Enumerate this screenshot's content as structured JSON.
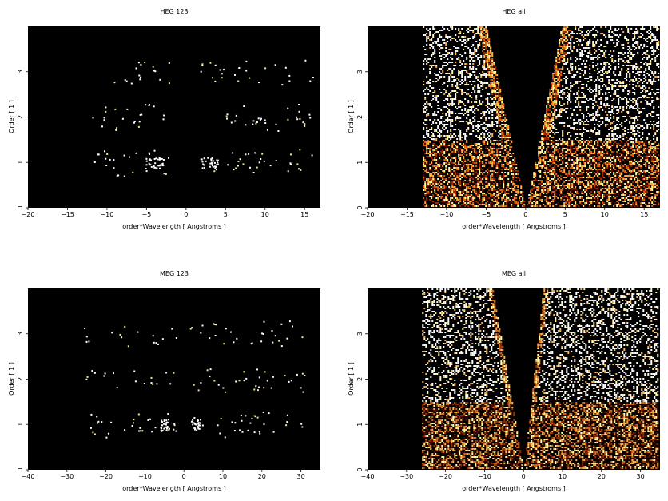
{
  "colors": {
    "background": "#000000",
    "colormap": [
      "#000000",
      "#4a0a00",
      "#a02a00",
      "#e06a10",
      "#ffb040",
      "#ffffa0",
      "#ffffff"
    ]
  },
  "chart_data": [
    {
      "type": "heatmap",
      "title": "HEG 123",
      "xlabel": "order*Wavelength [ Angstroms ]",
      "ylabel": "Order [ 1 ]",
      "xlim": [
        -20,
        17
      ],
      "ylim": [
        0,
        4
      ],
      "xticks": [
        "−20",
        "−15",
        "−10",
        "−5",
        "0",
        "5",
        "10",
        "15"
      ],
      "xtick_values": [
        -20,
        -15,
        -10,
        -5,
        0,
        5,
        10,
        15
      ],
      "yticks": [
        "0",
        "1",
        "2",
        "3"
      ],
      "ytick_values": [
        0,
        1,
        2,
        3
      ],
      "events": {
        "orders": [
          1,
          2,
          3
        ],
        "extent_per_order": [
          [
            -12,
            16
          ],
          [
            -12,
            16
          ],
          [
            -12,
            16
          ]
        ],
        "bright_lines": [
          -4,
          3
        ]
      }
    },
    {
      "type": "heatmap",
      "title": "HEG all",
      "xlabel": "order*Wavelength [ Angstroms ]",
      "ylabel": "Order [ 1 ]",
      "xlim": [
        -20,
        17
      ],
      "ylim": [
        0,
        4
      ],
      "xticks": [
        "−20",
        "−15",
        "−10",
        "−5",
        "0",
        "5",
        "10",
        "15"
      ],
      "xtick_values": [
        -20,
        -15,
        -10,
        -5,
        0,
        5,
        10,
        15
      ],
      "yticks": [
        "0",
        "1",
        "2",
        "3"
      ],
      "ytick_values": [
        0,
        1,
        2,
        3
      ],
      "events": {
        "x_range": [
          -13,
          17
        ],
        "v_gap_top": [
          -5,
          4.5
        ],
        "bright_band": [
          0,
          1.5
        ]
      }
    },
    {
      "type": "heatmap",
      "title": "MEG 123",
      "xlabel": "order*Wavelength [ Angstroms ]",
      "ylabel": "Order [ 1 ]",
      "xlim": [
        -40,
        35
      ],
      "ylim": [
        0,
        4
      ],
      "xticks": [
        "−40",
        "−30",
        "−20",
        "−10",
        "0",
        "10",
        "20",
        "30"
      ],
      "xtick_values": [
        -40,
        -30,
        -20,
        -10,
        0,
        10,
        20,
        30
      ],
      "yticks": [
        "0",
        "1",
        "2",
        "3"
      ],
      "ytick_values": [
        0,
        1,
        2,
        3
      ],
      "events": {
        "orders": [
          1,
          2,
          3
        ],
        "extent_per_order": [
          [
            -26,
            31
          ],
          [
            -26,
            31
          ],
          [
            -26,
            31
          ]
        ],
        "bright_lines": [
          -5,
          3
        ]
      }
    },
    {
      "type": "heatmap",
      "title": "MEG all",
      "xlabel": "order*Wavelength [ Angstroms ]",
      "ylabel": "Order [ 1 ]",
      "xlim": [
        -40,
        35
      ],
      "ylim": [
        0,
        4
      ],
      "xticks": [
        "−40",
        "−30",
        "−20",
        "−10",
        "0",
        "10",
        "20",
        "30"
      ],
      "xtick_values": [
        -40,
        -30,
        -20,
        -10,
        0,
        10,
        20,
        30
      ],
      "yticks": [
        "0",
        "1",
        "2",
        "3"
      ],
      "ytick_values": [
        0,
        1,
        2,
        3
      ],
      "events": {
        "x_range": [
          -26,
          35
        ],
        "v_gap_top": [
          -8,
          5
        ],
        "bright_band": [
          0,
          1.5
        ]
      }
    }
  ]
}
